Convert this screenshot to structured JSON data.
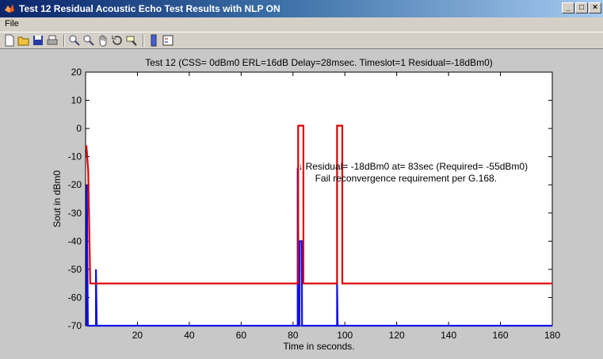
{
  "window": {
    "title": "Test 12 Residual Acoustic Echo Test Results with NLP ON",
    "controls": [
      "minimize-icon",
      "maximize-icon",
      "close-icon"
    ]
  },
  "menu": {
    "file_label": "File"
  },
  "toolbar": {
    "icons": [
      "new-figure-icon",
      "open-file-icon",
      "save-icon",
      "print-icon",
      "zoom-in-icon",
      "zoom-out-icon",
      "pan-hand-icon",
      "rotate-3d-icon",
      "data-cursor-icon",
      "colorbar-icon",
      "legend-icon"
    ]
  },
  "colors": {
    "residual": "#dd0000",
    "signal": "#1010ee",
    "axes_bg": "#ffffff",
    "figure_bg": "#c8c8c8"
  },
  "chart_data": {
    "type": "line",
    "title": "Test 12 (CSS= 0dBm0 ERL=16dB Delay=28msec. Timeslot=1 Residual=-18dBm0)",
    "xlabel": "Time in seconds.",
    "ylabel": "Sout in dBm0",
    "xlim": [
      0,
      180
    ],
    "ylim": [
      -70,
      20
    ],
    "xticks": [
      20,
      40,
      60,
      80,
      100,
      120,
      140,
      160,
      180
    ],
    "yticks": [
      20,
      10,
      0,
      -10,
      -20,
      -30,
      -40,
      -50,
      -60,
      -70
    ],
    "grid": false,
    "series": [
      {
        "color": "#dd0000",
        "points": [
          [
            0.3,
            -6
          ],
          [
            1.0,
            -15
          ],
          [
            1.8,
            -55
          ],
          [
            82,
            -55
          ],
          [
            82,
            1
          ],
          [
            84,
            1
          ],
          [
            84,
            -55
          ],
          [
            97,
            -55
          ],
          [
            97,
            1
          ],
          [
            99,
            1
          ],
          [
            99,
            -55
          ],
          [
            180,
            -55
          ]
        ]
      },
      {
        "color": "#1010ee",
        "points": [
          [
            0.5,
            -70
          ],
          [
            0.5,
            -20
          ],
          [
            0.9,
            -70
          ],
          [
            4,
            -70
          ],
          [
            4,
            -50
          ],
          [
            4.3,
            -70
          ],
          [
            81.8,
            -70
          ],
          [
            81.8,
            -14
          ],
          [
            82.3,
            -70
          ],
          [
            82.5,
            -70
          ],
          [
            82.6,
            -40
          ],
          [
            83.4,
            -40
          ],
          [
            83.5,
            -70
          ],
          [
            97,
            -70
          ],
          [
            97,
            -55
          ],
          [
            97.2,
            -70
          ],
          [
            180,
            -70
          ]
        ]
      }
    ],
    "annotation": {
      "arrow": "↓",
      "x": 83,
      "y": -14,
      "line1": "Residual=  -18dBm0 at= 83sec (Required=  -55dBm0)",
      "line2": "Fail reconvergence requirement per G.168."
    }
  }
}
